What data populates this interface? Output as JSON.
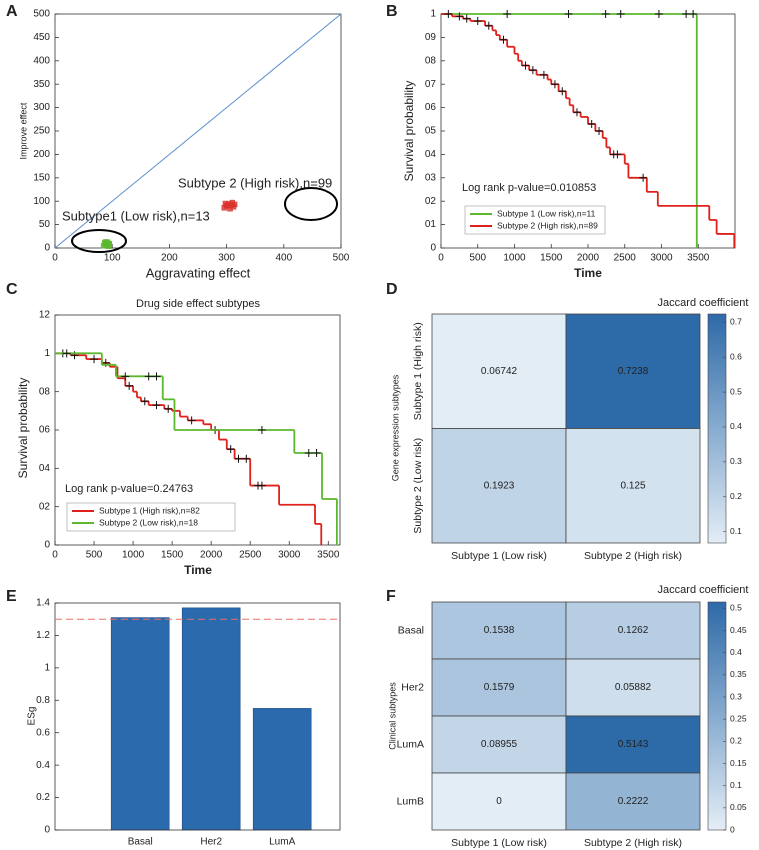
{
  "chart_data": [
    {
      "panel_label": "A",
      "type": "scatter",
      "xlabel": "Aggravating effect",
      "ylabel": "Improve effect",
      "xlim": [
        0,
        500
      ],
      "ylim": [
        0,
        500
      ],
      "xticks": [
        0,
        100,
        200,
        300,
        400,
        500
      ],
      "yticks": [
        0,
        50,
        100,
        150,
        200,
        250,
        300,
        350,
        400,
        450,
        500
      ],
      "diagonal": true,
      "diagonal_color": "#5b8fd0",
      "annotations": [
        "Subtype 2 (High risk),n=99",
        "Subtype1 (Low risk),n=13"
      ],
      "series": [
        {
          "name": "Subtype1 (Low risk)",
          "color": "#5cb82e",
          "x": [
            85,
            88,
            90,
            92,
            94,
            87,
            91,
            95,
            89,
            93
          ],
          "values": [
            5,
            8,
            10,
            12,
            7,
            11,
            6,
            9,
            13,
            4
          ]
        },
        {
          "name": "Subtype 2 (High risk)",
          "color": "#d8332c",
          "x": [
            296,
            300,
            304,
            308,
            312,
            298,
            306,
            310,
            302,
            314
          ],
          "values": [
            86,
            90,
            94,
            92,
            88,
            95,
            84,
            97,
            91,
            93
          ]
        }
      ]
    },
    {
      "panel_label": "B",
      "type": "km",
      "xlabel": "Time",
      "ylabel": "Survival probability",
      "annotation": "Log rank p-value=0.010853",
      "xlim": [
        0,
        4000
      ],
      "ylim": [
        0,
        1
      ],
      "xticks": [
        0,
        500,
        1000,
        1500,
        2000,
        2500,
        3000,
        3500
      ],
      "yticks": [
        0,
        {
          "value": 0.1,
          "label": "01"
        },
        {
          "value": 0.2,
          "label": "02"
        },
        {
          "value": 0.3,
          "label": "03"
        },
        {
          "value": 0.4,
          "label": "04"
        },
        {
          "value": 0.5,
          "label": "05"
        },
        {
          "value": 0.6,
          "label": "06"
        },
        {
          "value": 0.7,
          "label": "07"
        },
        {
          "value": 0.8,
          "label": "08"
        },
        {
          "value": 0.9,
          "label": "09"
        },
        1
      ],
      "series": [
        {
          "name": "Subtype 1 (Low risk),n=11",
          "color": "#5cb82e",
          "x": [
            0,
            3480
          ],
          "values": [
            1,
            0
          ],
          "censored": [
            900,
            1735,
            2240,
            2445,
            2965,
            3335,
            3430
          ]
        },
        {
          "name": "Subtype 2 (High risk),n=89",
          "color": "#e0201b",
          "x": [
            0,
            150,
            300,
            400,
            600,
            700,
            750,
            800,
            900,
            1000,
            1050,
            1100,
            1200,
            1300,
            1450,
            1500,
            1600,
            1700,
            1750,
            1800,
            1900,
            2000,
            2100,
            2200,
            2250,
            2300,
            2500,
            2550,
            2800,
            2950,
            3650,
            3750,
            3990
          ],
          "values": [
            1,
            0.99,
            0.98,
            0.97,
            0.95,
            0.93,
            0.91,
            0.89,
            0.86,
            0.83,
            0.8,
            0.78,
            0.76,
            0.74,
            0.72,
            0.7,
            0.67,
            0.64,
            0.61,
            0.58,
            0.56,
            0.53,
            0.5,
            0.47,
            0.43,
            0.4,
            0.36,
            0.3,
            0.24,
            0.18,
            0.12,
            0.06,
            0
          ],
          "censored": [
            100,
            250,
            350,
            500,
            650,
            850,
            1150,
            1250,
            1400,
            1550,
            1650,
            1850,
            2050,
            2150,
            2350,
            2400,
            2750
          ]
        }
      ]
    },
    {
      "panel_label": "C",
      "type": "km",
      "title": "Drug side effect subtypes",
      "xlabel": "Time",
      "ylabel": "Survival probability",
      "annotation": "Log rank p-value=0.24763",
      "xlim": [
        0,
        3650
      ],
      "ylim": [
        0,
        1.2
      ],
      "xticks": [
        0,
        500,
        1000,
        1500,
        2000,
        2500,
        3000,
        3500
      ],
      "yticks": [
        0,
        {
          "value": 0.2,
          "label": "02"
        },
        {
          "value": 0.4,
          "label": "04"
        },
        {
          "value": 0.6,
          "label": "06"
        },
        {
          "value": 0.8,
          "label": "08"
        },
        1,
        {
          "value": 1.2,
          "label": "12"
        }
      ],
      "series": [
        {
          "name": "Subtype 1 (High risk),n=82",
          "color": "#e0201b",
          "x": [
            0,
            200,
            400,
            600,
            700,
            800,
            900,
            1000,
            1050,
            1100,
            1200,
            1400,
            1500,
            1600,
            1700,
            1900,
            2000,
            2100,
            2200,
            2300,
            2500,
            2870,
            3330,
            3410
          ],
          "values": [
            1,
            0.99,
            0.97,
            0.95,
            0.93,
            0.87,
            0.83,
            0.8,
            0.77,
            0.75,
            0.73,
            0.71,
            0.7,
            0.67,
            0.65,
            0.63,
            0.6,
            0.55,
            0.5,
            0.45,
            0.31,
            0.21,
            0.11,
            0
          ],
          "censored": [
            100,
            250,
            500,
            650,
            950,
            1150,
            1300,
            1450,
            1750,
            2050,
            2250,
            2350,
            2450,
            2600,
            2650
          ]
        },
        {
          "name": "Subtype 2 (Low risk),n=18",
          "color": "#5cb82e",
          "x": [
            0,
            600,
            780,
            1380,
            1530,
            3065,
            3420,
            3610
          ],
          "values": [
            1,
            0.94,
            0.88,
            0.76,
            0.6,
            0.48,
            0.24,
            0
          ],
          "censored": [
            150,
            900,
            1200,
            1300,
            2650,
            3250,
            3350
          ]
        }
      ]
    },
    {
      "panel_label": "D",
      "type": "heatmap",
      "ylabel": "Gene expression subtypes",
      "colorbar_title": "Jaccard coefficient",
      "rows": [
        "Subtype 1 (High risk)",
        "Subtype 2 (Low risk)"
      ],
      "columns": [
        "Subtype 1 (Low risk)",
        "Subtype 2 (High risk)"
      ],
      "values": [
        [
          0.06742,
          0.7238
        ],
        [
          0.1923,
          0.125
        ]
      ],
      "clim": [
        0.06742,
        0.7238
      ],
      "colorbar_ticks": [
        0.1,
        0.2,
        0.3,
        0.4,
        0.5,
        0.6,
        0.7
      ],
      "colors": [
        "#e3edf6",
        "#2d6aa8"
      ]
    },
    {
      "panel_label": "E",
      "type": "bar",
      "ylabel": "ESg",
      "categories": [
        "Basal",
        "Her2",
        "LumA"
      ],
      "values": [
        1.31,
        1.37,
        0.75
      ],
      "color": "#2a6aad",
      "ylim": [
        0,
        1.4
      ],
      "yticks": [
        0,
        0.2,
        0.4,
        0.6,
        0.8,
        1,
        1.2,
        1.4
      ],
      "threshold": 1.3,
      "threshold_color": "#e8706a"
    },
    {
      "panel_label": "F",
      "type": "heatmap",
      "ylabel": "Clinical subtypes",
      "colorbar_title": "Jaccard coefficient",
      "rows": [
        "Basal",
        "Her2",
        "LumA",
        "LumB"
      ],
      "columns": [
        "Subtype 1 (Low risk)",
        "Subtype 2 (High risk)"
      ],
      "values": [
        [
          0.1538,
          0.1262
        ],
        [
          0.1579,
          0.05882
        ],
        [
          0.08955,
          0.5143
        ],
        [
          0,
          0.2222
        ]
      ],
      "clim": [
        0,
        0.5143
      ],
      "colorbar_ticks": [
        0,
        0.05,
        0.1,
        0.15,
        0.2,
        0.25,
        0.3,
        0.35,
        0.4,
        0.45,
        0.5
      ],
      "colors": [
        "#e3edf6",
        "#2d6aa8"
      ]
    }
  ]
}
